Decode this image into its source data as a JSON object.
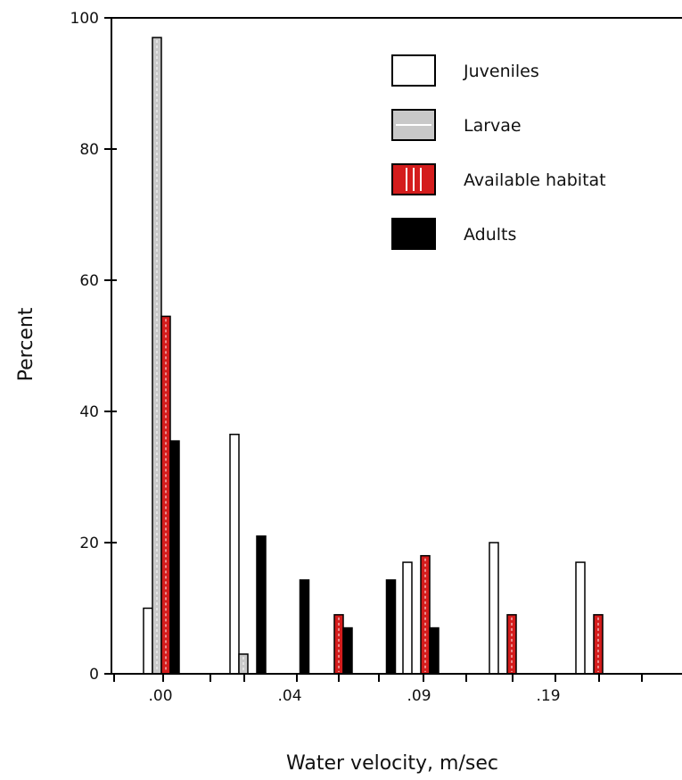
{
  "chart_data": {
    "type": "bar",
    "xlabel": "Water velocity, m/sec",
    "ylabel": "Percent",
    "ylim": [
      0,
      100
    ],
    "yticks": [
      0,
      20,
      40,
      60,
      80,
      100
    ],
    "xtick_labels": [
      ".00",
      ".04",
      ".09",
      ".19"
    ],
    "grid": false,
    "legend_position": "top-right",
    "series": [
      {
        "name": "Juveniles",
        "color": "#ffffff",
        "bars": [
          {
            "bin": 0,
            "value": 10
          },
          {
            "bin": 1,
            "value": 36.5
          },
          {
            "bin": 3,
            "value": 17
          },
          {
            "bin": 4,
            "value": 20
          },
          {
            "bin": 5,
            "value": 17
          }
        ]
      },
      {
        "name": "Larvae",
        "color": "#c8c8c8",
        "bars": [
          {
            "bin": 0,
            "value": 97
          },
          {
            "bin": 1,
            "value": 3
          }
        ]
      },
      {
        "name": "Available habitat",
        "color": "#d41c1c",
        "bars": [
          {
            "bin": 0,
            "value": 54.5
          },
          {
            "bin": 2,
            "value": 9
          },
          {
            "bin": 3,
            "value": 18
          },
          {
            "bin": 4,
            "value": 9
          },
          {
            "bin": 5,
            "value": 9
          }
        ]
      },
      {
        "name": "Adults",
        "color": "#000000",
        "bars": [
          {
            "bin": 0,
            "value": 35.5
          },
          {
            "bin": 1,
            "value": 21
          },
          {
            "bin": 1.5,
            "value": 14.3
          },
          {
            "bin": 2,
            "value": 7
          },
          {
            "bin": 2.5,
            "value": 14.3
          },
          {
            "bin": 3,
            "value": 7
          }
        ]
      }
    ]
  }
}
